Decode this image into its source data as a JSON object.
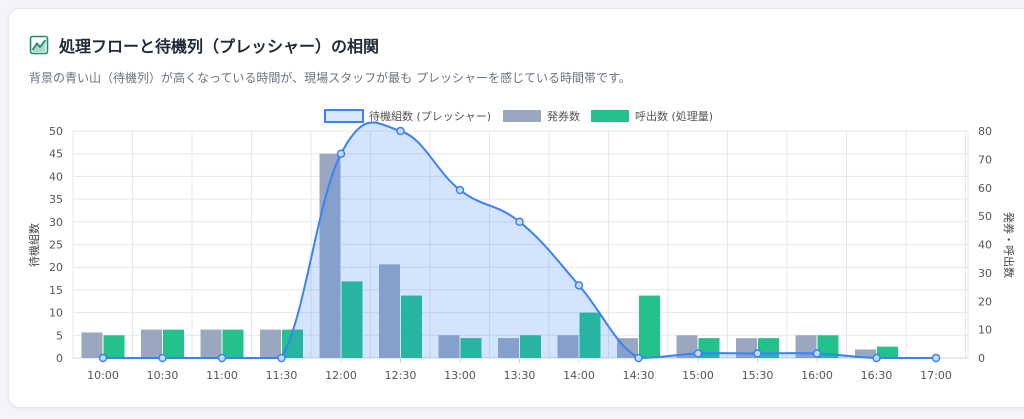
{
  "header": {
    "icon": "area-chart-icon",
    "title": "処理フローと待機列（プレッシャー）の相関",
    "subtitle": "背景の青い山（待機列）が高くなっている時間が、現場スタッフが最も プレッシャーを感じている時間帯です。"
  },
  "colors": {
    "wait_line": "#3b82f6",
    "wait_fill": "rgba(59,130,246,0.22)",
    "issued": "#9aa8bf",
    "called": "#22c28a",
    "grid": "#e5e7eb",
    "icon": "#1f8a70"
  },
  "chart_data": {
    "type": "bar",
    "categories": [
      "10:00",
      "10:30",
      "11:00",
      "11:30",
      "12:00",
      "12:30",
      "13:00",
      "13:30",
      "14:00",
      "14:30",
      "15:00",
      "15:30",
      "16:00",
      "16:30",
      "17:00"
    ],
    "series": [
      {
        "name": "待機組数 (プレッシャー)",
        "type": "area",
        "axis": "left",
        "values": [
          0,
          0,
          0,
          0,
          45,
          50,
          37,
          30,
          16,
          0,
          1,
          1,
          1,
          0,
          0
        ]
      },
      {
        "name": "発券数",
        "type": "bar",
        "axis": "right",
        "values": [
          9,
          10,
          10,
          10,
          72,
          33,
          8,
          7,
          8,
          7,
          8,
          7,
          8,
          3,
          null
        ]
      },
      {
        "name": "呼出数 (処理量)",
        "type": "bar",
        "axis": "right",
        "values": [
          8,
          10,
          10,
          10,
          27,
          22,
          7,
          8,
          16,
          22,
          7,
          7,
          8,
          4,
          null
        ]
      }
    ],
    "y_left": {
      "label": "待機組数",
      "ylim": [
        0,
        50
      ],
      "ticks": [
        "0",
        "5",
        "10",
        "15",
        "20",
        "25",
        "30",
        "35",
        "40",
        "45",
        "50"
      ]
    },
    "y_right": {
      "label": "発券・呼出数",
      "ylim": [
        0,
        80
      ],
      "ticks": [
        "0",
        "10",
        "20",
        "30",
        "40",
        "50",
        "60",
        "70",
        "80"
      ]
    },
    "grid": true,
    "legend": "top-center"
  }
}
